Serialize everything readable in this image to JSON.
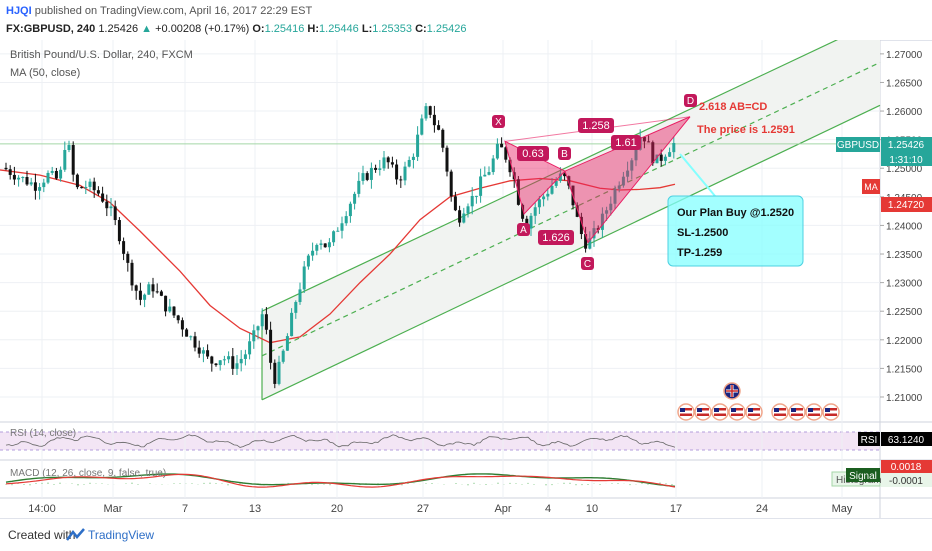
{
  "header": {
    "user": "HJQI",
    "published_text": "published on TradingView.com, April 16, 2017 22:29 EST",
    "symbol": "FX:GBPUSD, 240",
    "last": "1.25426",
    "change_arrow": "▲",
    "change": "+0.00208 (+0.17%)",
    "o_label": "O:",
    "o": "1.25416",
    "h_label": "H:",
    "h": "1.25446",
    "l_label": "L:",
    "l": "1.25353",
    "c_label": "C:",
    "c": "1.25426"
  },
  "legend": {
    "instrument": "British Pound/U.S. Dollar, 240, FXCM",
    "ma": "MA (50, close)"
  },
  "annotations": {
    "points": {
      "X": "X",
      "A": "A",
      "B": "B",
      "C": "C",
      "D": "D"
    },
    "ratio_ab": "0.63",
    "ratio_xb": "1.258",
    "ratio_bc": "1.626",
    "ratio_cd": "1.61",
    "ab_cd": "2.618 AB=CD",
    "price_note": "The price is 1.2591",
    "plan_title": "Our Plan Buy @1.2520",
    "plan_sl": "SL-1.2500",
    "plan_tp": "TP-1.259"
  },
  "price_labels": {
    "symbol_tag": "GBPUSD",
    "last_price": "1.25426",
    "countdown": "1:31:10",
    "ma_tag": "MA",
    "ma_value": "1.24720"
  },
  "rsi": {
    "label": "RSI (14, close)",
    "tag": "RSI",
    "value": "63.1240"
  },
  "macd": {
    "label": "MACD (12, 26, close, 9, false, true)",
    "hist_value": "0.0018",
    "signal_tag": "Signal",
    "signal_value": "-0.0001",
    "histogram_tag": "Histogram"
  },
  "footer": {
    "created_with": "Created with",
    "brand": "TradingView"
  },
  "colors": {
    "up": "#26a69a",
    "down": "#111111",
    "ma": "#e53935",
    "channel": "#4caf50",
    "pattern": "#e91e63",
    "note_box": "#84ffff",
    "text_red": "#e53935",
    "accent": "#2962ff"
  },
  "chart_data": {
    "type": "candlestick",
    "symbol": "GBPUSD",
    "timeframe": "240",
    "x_ticks": [
      "14:00",
      "Mar",
      "7",
      "13",
      "20",
      "27",
      "Apr",
      "4",
      "10",
      "17",
      "24",
      "May"
    ],
    "y_ticks": [
      "1.27000",
      "1.26500",
      "1.26000",
      "1.25500",
      "1.25000",
      "1.24500",
      "1.24000",
      "1.23500",
      "1.23000",
      "1.22500",
      "1.22000",
      "1.21500",
      "1.21000"
    ],
    "ylim": [
      1.2065,
      1.2712
    ],
    "close_path": [
      [
        0,
        1.2505
      ],
      [
        12,
        1.2492
      ],
      [
        24,
        1.248
      ],
      [
        36,
        1.247
      ],
      [
        48,
        1.2488
      ],
      [
        60,
        1.2478
      ],
      [
        63,
        1.2545
      ],
      [
        70,
        1.253
      ],
      [
        75,
        1.2462
      ],
      [
        87,
        1.247
      ],
      [
        100,
        1.2455
      ],
      [
        112,
        1.242
      ],
      [
        120,
        1.238
      ],
      [
        130,
        1.2315
      ],
      [
        140,
        1.227
      ],
      [
        152,
        1.2295
      ],
      [
        165,
        1.226
      ],
      [
        178,
        1.2235
      ],
      [
        190,
        1.2205
      ],
      [
        200,
        1.2185
      ],
      [
        210,
        1.216
      ],
      [
        222,
        1.217
      ],
      [
        235,
        1.2155
      ],
      [
        245,
        1.2175
      ],
      [
        255,
        1.221
      ],
      [
        262,
        1.2245
      ],
      [
        268,
        1.22
      ],
      [
        273,
        1.2125
      ],
      [
        280,
        1.2155
      ],
      [
        288,
        1.221
      ],
      [
        296,
        1.227
      ],
      [
        306,
        1.233
      ],
      [
        318,
        1.238
      ],
      [
        328,
        1.236
      ],
      [
        340,
        1.2405
      ],
      [
        350,
        1.244
      ],
      [
        362,
        1.248
      ],
      [
        374,
        1.25
      ],
      [
        386,
        1.2515
      ],
      [
        398,
        1.248
      ],
      [
        406,
        1.25
      ],
      [
        414,
        1.253
      ],
      [
        421,
        1.2575
      ],
      [
        428,
        1.261
      ],
      [
        434,
        1.258
      ],
      [
        440,
        1.256
      ],
      [
        446,
        1.251
      ],
      [
        452,
        1.244
      ],
      [
        458,
        1.241
      ],
      [
        466,
        1.244
      ],
      [
        474,
        1.245
      ],
      [
        482,
        1.248
      ],
      [
        490,
        1.25
      ],
      [
        499,
        1.254
      ],
      [
        506,
        1.252
      ],
      [
        513,
        1.249
      ],
      [
        519,
        1.244
      ],
      [
        526,
        1.24
      ],
      [
        534,
        1.243
      ],
      [
        543,
        1.245
      ],
      [
        552,
        1.247
      ],
      [
        560,
        1.2485
      ],
      [
        566,
        1.248
      ],
      [
        573,
        1.244
      ],
      [
        580,
        1.239
      ],
      [
        587,
        1.2365
      ],
      [
        594,
        1.2385
      ],
      [
        602,
        1.241
      ],
      [
        612,
        1.245
      ],
      [
        622,
        1.249
      ],
      [
        632,
        1.252
      ],
      [
        642,
        1.2565
      ],
      [
        648,
        1.254
      ],
      [
        655,
        1.251
      ],
      [
        662,
        1.252
      ],
      [
        668,
        1.2535
      ],
      [
        674,
        1.2543
      ]
    ],
    "ma_path": [
      [
        0,
        1.2497
      ],
      [
        40,
        1.2488
      ],
      [
        80,
        1.247
      ],
      [
        110,
        1.244
      ],
      [
        140,
        1.239
      ],
      [
        180,
        1.232
      ],
      [
        210,
        1.226
      ],
      [
        240,
        1.222
      ],
      [
        270,
        1.2195
      ],
      [
        300,
        1.2205
      ],
      [
        330,
        1.2245
      ],
      [
        360,
        1.23
      ],
      [
        390,
        1.235
      ],
      [
        420,
        1.241
      ],
      [
        450,
        1.245
      ],
      [
        480,
        1.2465
      ],
      [
        510,
        1.2478
      ],
      [
        540,
        1.2482
      ],
      [
        570,
        1.2478
      ],
      [
        600,
        1.2465
      ],
      [
        620,
        1.2462
      ],
      [
        640,
        1.2463
      ],
      [
        660,
        1.2466
      ],
      [
        675,
        1.2472
      ]
    ],
    "channel": {
      "lower": [
        [
          262,
          1.2095
        ],
        [
          880,
          1.261
        ]
      ],
      "upper": [
        [
          262,
          1.225
        ],
        [
          880,
          1.276
        ]
      ],
      "mid": [
        [
          262,
          1.2172
        ],
        [
          880,
          1.2685
        ]
      ]
    },
    "pattern_points": {
      "X": [
        505,
        1.2547
      ],
      "A": [
        524,
        1.242
      ],
      "B": [
        565,
        1.2495
      ],
      "C": [
        588,
        1.237
      ],
      "D": [
        690,
        1.259
      ]
    }
  }
}
